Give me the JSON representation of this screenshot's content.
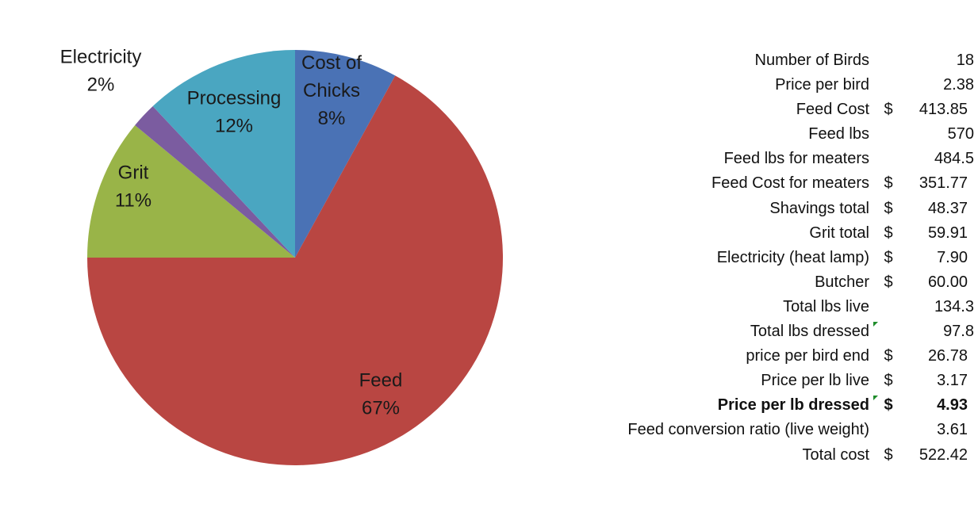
{
  "chart_data": {
    "type": "pie",
    "slices": [
      {
        "label_lines": [
          "Cost of",
          "Chicks"
        ],
        "pct_label": "8%",
        "value": 8,
        "color": "#4a72b5"
      },
      {
        "label_lines": [
          "Feed"
        ],
        "pct_label": "67%",
        "value": 67,
        "color": "#b94642"
      },
      {
        "label_lines": [
          "Grit"
        ],
        "pct_label": "11%",
        "value": 11,
        "color": "#99b448"
      },
      {
        "label_lines": [
          "Electricity"
        ],
        "pct_label": "2%",
        "value": 2,
        "color": "#7b5ca0"
      },
      {
        "label_lines": [
          "Processing"
        ],
        "pct_label": "12%",
        "value": 12,
        "color": "#4aa6c1"
      }
    ]
  },
  "table": {
    "rows": [
      {
        "label": "Number of Birds",
        "currency": "",
        "value": "18"
      },
      {
        "label": "Price per bird",
        "currency": "",
        "value": "2.38"
      },
      {
        "label": "Feed Cost",
        "currency": "$",
        "value": "413.85"
      },
      {
        "label": "Feed lbs",
        "currency": "",
        "value": "570"
      },
      {
        "label": "Feed lbs for meaters",
        "currency": "",
        "value": "484.5"
      },
      {
        "label": "Feed Cost for meaters",
        "currency": "$",
        "value": "351.77"
      },
      {
        "label": "Shavings total",
        "currency": "$",
        "value": "48.37"
      },
      {
        "label": "Grit total",
        "currency": "$",
        "value": "59.91"
      },
      {
        "label": "Electricity (heat lamp)",
        "currency": "$",
        "value": "7.90"
      },
      {
        "label": "Butcher",
        "currency": "$",
        "value": "60.00"
      },
      {
        "label": "Total lbs live",
        "currency": "",
        "value": "134.3"
      },
      {
        "label": "Total lbs dressed",
        "currency": "",
        "value": "97.8",
        "comment_marker": true
      },
      {
        "label": "price per bird end",
        "currency": "$",
        "value": "26.78"
      },
      {
        "label": "Price per lb live",
        "currency": "$",
        "value": "3.17"
      },
      {
        "label": "Price per lb dressed",
        "currency": "$",
        "value": "4.93",
        "bold": true,
        "comment_marker": true
      },
      {
        "label": "Feed conversion ratio (live weight)",
        "currency": "",
        "value": "3.61"
      },
      {
        "label": "Total cost",
        "currency": "$",
        "value": "522.42"
      }
    ]
  }
}
